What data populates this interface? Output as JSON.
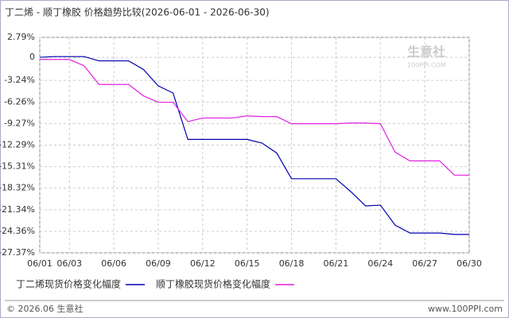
{
  "chart_data": {
    "type": "line",
    "title": "丁二烯 - 顺丁橡胶 价格趋势比较(2026-06-01 - 2026-06-30)",
    "categories": [
      "06/01",
      null,
      "06/03",
      null,
      null,
      "06/06",
      null,
      null,
      "06/09",
      null,
      null,
      "06/12",
      null,
      null,
      "06/15",
      null,
      null,
      "06/18",
      null,
      null,
      "06/21",
      null,
      null,
      "06/24",
      null,
      null,
      "06/27",
      null,
      null,
      "06/30"
    ],
    "series": [
      {
        "name": "丁二烯现货价格变化幅度",
        "color": "#0000b0",
        "values": [
          0,
          0.1,
          0.1,
          0.1,
          -0.5,
          -0.5,
          -0.5,
          -1.7,
          -4.0,
          -5.0,
          -11.5,
          -11.5,
          -11.5,
          -11.5,
          -11.5,
          -12.0,
          -13.4,
          -17.0,
          -17.0,
          -17.0,
          -17.0,
          -18.8,
          -20.8,
          -20.7,
          -23.5,
          -24.6,
          -24.6,
          -24.6,
          -24.8,
          -24.8
        ]
      },
      {
        "name": "顺丁橡胶现货价格变化幅度",
        "color": "#e020e0",
        "values": [
          -0.3,
          -0.3,
          -0.3,
          -1.2,
          -3.8,
          -3.8,
          -3.8,
          -5.4,
          -6.3,
          -6.3,
          -9.0,
          -8.5,
          -8.5,
          -8.5,
          -8.2,
          -8.3,
          -8.3,
          -9.3,
          -9.3,
          -9.3,
          -9.3,
          -9.2,
          -9.2,
          -9.3,
          -13.3,
          -14.5,
          -14.5,
          -14.5,
          -16.5,
          -16.5
        ]
      }
    ],
    "ylim": [
      -27.37,
      2.79
    ],
    "yticks": [
      {
        "value": 2.79,
        "label": "2.79%"
      },
      0,
      {
        "value": -3.24,
        "label": "-3.24%"
      },
      {
        "value": -6.26,
        "label": "-6.26%"
      },
      {
        "value": -9.27,
        "label": "-9.27%"
      },
      {
        "value": -12.29,
        "label": "-12.29%"
      },
      {
        "value": -15.31,
        "label": "-15.31%"
      },
      {
        "value": -18.32,
        "label": "-18.32%"
      },
      {
        "value": -21.34,
        "label": "-21.34%"
      },
      {
        "value": -24.36,
        "label": "-24.36%"
      },
      {
        "value": -27.37,
        "label": "-27.37%"
      }
    ],
    "grid": true,
    "watermark": "生意社",
    "watermark_sub": "100PPI.COM",
    "copyright": "© 2026.06 生意社",
    "website": "www.100PPI.com"
  }
}
